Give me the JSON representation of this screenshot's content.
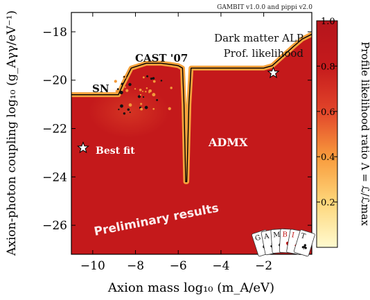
{
  "chart_data": {
    "type": "heatmap",
    "banner": "GAMBIT v1.0.0 and pippi v2.0",
    "xlabel": "Axion mass log₁₀ (m_A/eV)",
    "ylabel": "Axion-photon coupling log₁₀ (g_Aγγ/eV⁻¹)",
    "xlim": [
      -11,
      0.25
    ],
    "ylim": [
      -27.2,
      -17.2
    ],
    "x_ticks": [
      -10,
      -8,
      -6,
      -4,
      -2
    ],
    "x_tick_labels": [
      "−10",
      "−8",
      "−6",
      "−4",
      "−2"
    ],
    "y_ticks": [
      -26,
      -24,
      -22,
      -20,
      -18
    ],
    "y_tick_labels": [
      "−26",
      "−24",
      "−22",
      "−20",
      "−18"
    ],
    "colorbar": {
      "label": "Profile likelihood ratio Λ = ℒ/ℒmax",
      "range": [
        0,
        1
      ],
      "ticks": [
        0.2,
        0.4,
        0.6,
        0.8,
        1.0
      ],
      "tick_labels": [
        "0.2",
        "0.4",
        "0.6",
        "0.8",
        "1.0"
      ],
      "colors": [
        "#fffbd0",
        "#fed67a",
        "#f89a3c",
        "#e2452a",
        "#c51a1c",
        "#b5151c"
      ]
    },
    "fill_color": "#c4191b",
    "boundary_curve": {
      "x": [
        -11.0,
        -9.5,
        -8.8,
        -8.6,
        -8.2,
        -7.5,
        -6.8,
        -6.35,
        -6.0,
        -5.8,
        -5.73,
        -5.65,
        -5.6,
        -5.5,
        -5.4,
        -5.0,
        -4.0,
        -3.0,
        -2.0,
        -1.6,
        -1.1,
        -0.6,
        -0.2,
        0.25
      ],
      "y": [
        -20.6,
        -20.6,
        -20.6,
        -20.2,
        -19.5,
        -19.3,
        -19.3,
        -19.35,
        -19.4,
        -19.5,
        -21.0,
        -24.2,
        -24.2,
        -21.0,
        -19.5,
        -19.5,
        -19.5,
        -19.5,
        -19.5,
        -19.4,
        -19.0,
        -18.6,
        -18.3,
        -18.1
      ]
    },
    "best_fit_points": [
      {
        "x": -10.45,
        "y": -22.8
      },
      {
        "x": -1.55,
        "y": -19.7
      }
    ],
    "annotations": {
      "model": "Dark matter ALP",
      "method": "Prof. likelihood",
      "cast": "CAST '07",
      "sn": "SN",
      "admx": "ADMX",
      "best_fit": "Best fit",
      "preliminary": "Preliminary results"
    },
    "logo_letters": [
      "G",
      "A",
      "M",
      "B",
      "I",
      "T"
    ]
  }
}
